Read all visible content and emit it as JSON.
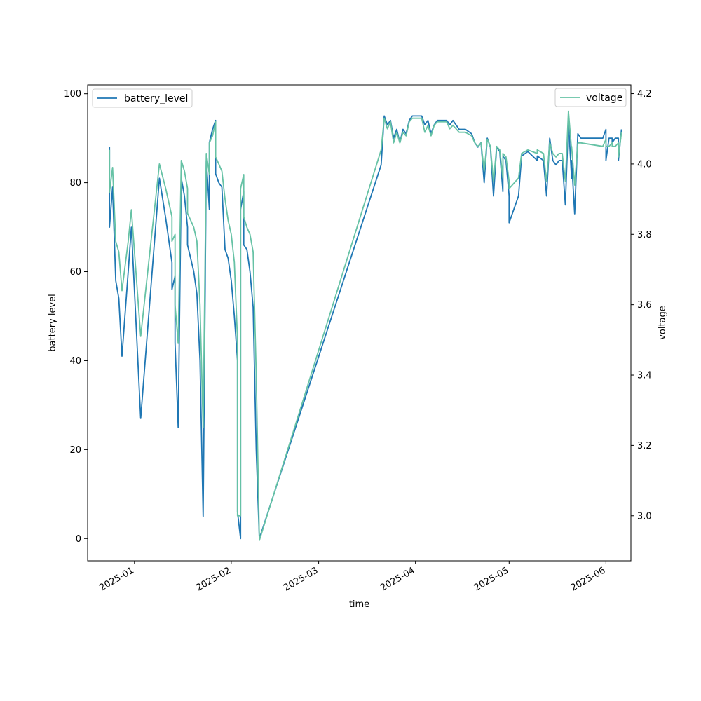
{
  "chart_data": {
    "type": "line",
    "xlabel": "time",
    "ylabel_left": "battery level",
    "ylabel_right": "voltage",
    "x_ticks": [
      "2025-01",
      "2025-02",
      "2025-03",
      "2025-04",
      "2025-05",
      "2025-06"
    ],
    "y_left_ticks": [
      0,
      20,
      40,
      60,
      80,
      100
    ],
    "y_right_ticks": [
      3.0,
      3.2,
      3.4,
      3.6,
      3.8,
      4.0,
      4.2
    ],
    "y_left_lim": [
      -5,
      102
    ],
    "y_right_lim": [
      2.872,
      4.225
    ],
    "x_lim": [
      "2024-12-17",
      "2025-06-09"
    ],
    "grid": false,
    "series": [
      {
        "name": "battery_level",
        "axis": "left",
        "color": "#1f77b4",
        "legend_position": "top-left",
        "points": [
          [
            "2024-12-24",
            88
          ],
          [
            "2024-12-24",
            70
          ],
          [
            "2024-12-25",
            79
          ],
          [
            "2024-12-26",
            58
          ],
          [
            "2024-12-27",
            54
          ],
          [
            "2024-12-28",
            41
          ],
          [
            "2024-12-30",
            60
          ],
          [
            "2024-12-31",
            70
          ],
          [
            "2025-01-03",
            27
          ],
          [
            "2025-01-09",
            81
          ],
          [
            "2025-01-11",
            72
          ],
          [
            "2025-01-13",
            62
          ],
          [
            "2025-01-13",
            56
          ],
          [
            "2025-01-14",
            59
          ],
          [
            "2025-01-14",
            44
          ],
          [
            "2025-01-15",
            25
          ],
          [
            "2025-01-16",
            81
          ],
          [
            "2025-01-17",
            77
          ],
          [
            "2025-01-18",
            70
          ],
          [
            "2025-01-18",
            66
          ],
          [
            "2025-01-19",
            63
          ],
          [
            "2025-01-20",
            60
          ],
          [
            "2025-01-21",
            55
          ],
          [
            "2025-01-22",
            40
          ],
          [
            "2025-01-23",
            5
          ],
          [
            "2025-01-24",
            85
          ],
          [
            "2025-01-25",
            74
          ],
          [
            "2025-01-25",
            89
          ],
          [
            "2025-01-26",
            92
          ],
          [
            "2025-01-27",
            94
          ],
          [
            "2025-01-27",
            82
          ],
          [
            "2025-01-28",
            80
          ],
          [
            "2025-01-29",
            79
          ],
          [
            "2025-01-30",
            65
          ],
          [
            "2025-01-31",
            63
          ],
          [
            "2025-02-01",
            58
          ],
          [
            "2025-02-02",
            50
          ],
          [
            "2025-02-03",
            40
          ],
          [
            "2025-02-03",
            6
          ],
          [
            "2025-02-04",
            0
          ],
          [
            "2025-02-04",
            74
          ],
          [
            "2025-02-05",
            78
          ],
          [
            "2025-02-05",
            66
          ],
          [
            "2025-02-06",
            65
          ],
          [
            "2025-02-07",
            60
          ],
          [
            "2025-02-08",
            52
          ],
          [
            "2025-02-09",
            20
          ],
          [
            "2025-02-10",
            0
          ],
          [
            "2025-03-21",
            84
          ],
          [
            "2025-03-22",
            95
          ],
          [
            "2025-03-23",
            93
          ],
          [
            "2025-03-24",
            94
          ],
          [
            "2025-03-25",
            90
          ],
          [
            "2025-03-26",
            92
          ],
          [
            "2025-03-27",
            89
          ],
          [
            "2025-03-28",
            92
          ],
          [
            "2025-03-29",
            91
          ],
          [
            "2025-03-30",
            94
          ],
          [
            "2025-03-31",
            95
          ],
          [
            "2025-04-03",
            95
          ],
          [
            "2025-04-04",
            93
          ],
          [
            "2025-04-05",
            94
          ],
          [
            "2025-04-06",
            91
          ],
          [
            "2025-04-07",
            93
          ],
          [
            "2025-04-08",
            94
          ],
          [
            "2025-04-11",
            94
          ],
          [
            "2025-04-12",
            93
          ],
          [
            "2025-04-13",
            94
          ],
          [
            "2025-04-15",
            92
          ],
          [
            "2025-04-17",
            92
          ],
          [
            "2025-04-19",
            91
          ],
          [
            "2025-04-20",
            89
          ],
          [
            "2025-04-21",
            88
          ],
          [
            "2025-04-22",
            89
          ],
          [
            "2025-04-23",
            80
          ],
          [
            "2025-04-24",
            90
          ],
          [
            "2025-04-25",
            88
          ],
          [
            "2025-04-26",
            77
          ],
          [
            "2025-04-27",
            88
          ],
          [
            "2025-04-28",
            87
          ],
          [
            "2025-04-29",
            78
          ],
          [
            "2025-04-29",
            86
          ],
          [
            "2025-04-30",
            85
          ],
          [
            "2025-05-01",
            77
          ],
          [
            "2025-05-01",
            71
          ],
          [
            "2025-05-04",
            77
          ],
          [
            "2025-05-05",
            86
          ],
          [
            "2025-05-07",
            87
          ],
          [
            "2025-05-10",
            85
          ],
          [
            "2025-05-10",
            86
          ],
          [
            "2025-05-12",
            85
          ],
          [
            "2025-05-13",
            77
          ],
          [
            "2025-05-14",
            90
          ],
          [
            "2025-05-15",
            85
          ],
          [
            "2025-05-16",
            84
          ],
          [
            "2025-05-17",
            85
          ],
          [
            "2025-05-18",
            85
          ],
          [
            "2025-05-19",
            75
          ],
          [
            "2025-05-20",
            94
          ],
          [
            "2025-05-21",
            81
          ],
          [
            "2025-05-21",
            85
          ],
          [
            "2025-05-22",
            73
          ],
          [
            "2025-05-23",
            91
          ],
          [
            "2025-05-24",
            90
          ],
          [
            "2025-05-31",
            90
          ],
          [
            "2025-06-01",
            92
          ],
          [
            "2025-06-01",
            85
          ],
          [
            "2025-06-02",
            90
          ],
          [
            "2025-06-03",
            90
          ],
          [
            "2025-06-03",
            89
          ],
          [
            "2025-06-04",
            90
          ],
          [
            "2025-06-05",
            90
          ],
          [
            "2025-06-05",
            85
          ],
          [
            "2025-06-06",
            92
          ]
        ]
      },
      {
        "name": "voltage",
        "axis": "right",
        "color": "#66c2a5",
        "legend_position": "top-right",
        "points": [
          [
            "2024-12-24",
            4.04
          ],
          [
            "2024-12-24",
            3.92
          ],
          [
            "2024-12-25",
            3.99
          ],
          [
            "2024-12-26",
            3.78
          ],
          [
            "2024-12-27",
            3.75
          ],
          [
            "2024-12-28",
            3.64
          ],
          [
            "2024-12-30",
            3.78
          ],
          [
            "2024-12-31",
            3.87
          ],
          [
            "2025-01-03",
            3.51
          ],
          [
            "2025-01-09",
            4.0
          ],
          [
            "2025-01-11",
            3.93
          ],
          [
            "2025-01-13",
            3.85
          ],
          [
            "2025-01-13",
            3.78
          ],
          [
            "2025-01-14",
            3.8
          ],
          [
            "2025-01-14",
            3.6
          ],
          [
            "2025-01-15",
            3.49
          ],
          [
            "2025-01-16",
            4.01
          ],
          [
            "2025-01-17",
            3.98
          ],
          [
            "2025-01-18",
            3.93
          ],
          [
            "2025-01-18",
            3.86
          ],
          [
            "2025-01-19",
            3.84
          ],
          [
            "2025-01-20",
            3.82
          ],
          [
            "2025-01-21",
            3.78
          ],
          [
            "2025-01-22",
            3.6
          ],
          [
            "2025-01-23",
            3.25
          ],
          [
            "2025-01-24",
            4.03
          ],
          [
            "2025-01-25",
            3.97
          ],
          [
            "2025-01-25",
            4.06
          ],
          [
            "2025-01-26",
            4.08
          ],
          [
            "2025-01-27",
            4.12
          ],
          [
            "2025-01-27",
            4.02
          ],
          [
            "2025-01-28",
            4.0
          ],
          [
            "2025-01-29",
            3.98
          ],
          [
            "2025-01-30",
            3.9
          ],
          [
            "2025-01-31",
            3.84
          ],
          [
            "2025-02-01",
            3.8
          ],
          [
            "2025-02-02",
            3.72
          ],
          [
            "2025-02-03",
            3.5
          ],
          [
            "2025-02-03",
            3.0
          ],
          [
            "2025-02-04",
            3.0
          ],
          [
            "2025-02-04",
            3.93
          ],
          [
            "2025-02-05",
            3.97
          ],
          [
            "2025-02-05",
            3.85
          ],
          [
            "2025-02-06",
            3.82
          ],
          [
            "2025-02-07",
            3.8
          ],
          [
            "2025-02-08",
            3.75
          ],
          [
            "2025-02-09",
            3.4
          ],
          [
            "2025-02-10",
            2.93
          ],
          [
            "2025-03-21",
            4.04
          ],
          [
            "2025-03-22",
            4.13
          ],
          [
            "2025-03-23",
            4.1
          ],
          [
            "2025-03-24",
            4.12
          ],
          [
            "2025-03-25",
            4.06
          ],
          [
            "2025-03-26",
            4.09
          ],
          [
            "2025-03-27",
            4.06
          ],
          [
            "2025-03-28",
            4.09
          ],
          [
            "2025-03-29",
            4.08
          ],
          [
            "2025-03-30",
            4.12
          ],
          [
            "2025-03-31",
            4.13
          ],
          [
            "2025-04-03",
            4.13
          ],
          [
            "2025-04-04",
            4.09
          ],
          [
            "2025-04-05",
            4.11
          ],
          [
            "2025-04-06",
            4.08
          ],
          [
            "2025-04-07",
            4.11
          ],
          [
            "2025-04-08",
            4.12
          ],
          [
            "2025-04-11",
            4.12
          ],
          [
            "2025-04-12",
            4.1
          ],
          [
            "2025-04-13",
            4.11
          ],
          [
            "2025-04-15",
            4.09
          ],
          [
            "2025-04-17",
            4.09
          ],
          [
            "2025-04-19",
            4.08
          ],
          [
            "2025-04-20",
            4.06
          ],
          [
            "2025-04-21",
            4.05
          ],
          [
            "2025-04-22",
            4.06
          ],
          [
            "2025-04-23",
            3.98
          ],
          [
            "2025-04-24",
            4.07
          ],
          [
            "2025-04-25",
            4.05
          ],
          [
            "2025-04-26",
            3.95
          ],
          [
            "2025-04-27",
            4.05
          ],
          [
            "2025-04-28",
            4.04
          ],
          [
            "2025-04-29",
            3.96
          ],
          [
            "2025-04-29",
            4.03
          ],
          [
            "2025-04-30",
            4.02
          ],
          [
            "2025-05-01",
            3.95
          ],
          [
            "2025-05-01",
            3.93
          ],
          [
            "2025-05-04",
            3.96
          ],
          [
            "2025-05-05",
            4.03
          ],
          [
            "2025-05-07",
            4.04
          ],
          [
            "2025-05-10",
            4.03
          ],
          [
            "2025-05-10",
            4.04
          ],
          [
            "2025-05-12",
            4.03
          ],
          [
            "2025-05-13",
            3.95
          ],
          [
            "2025-05-14",
            4.06
          ],
          [
            "2025-05-15",
            4.03
          ],
          [
            "2025-05-16",
            4.02
          ],
          [
            "2025-05-17",
            4.03
          ],
          [
            "2025-05-18",
            4.03
          ],
          [
            "2025-05-19",
            3.95
          ],
          [
            "2025-05-20",
            4.15
          ],
          [
            "2025-05-21",
            4.04
          ],
          [
            "2025-05-21",
            4.05
          ],
          [
            "2025-05-22",
            3.94
          ],
          [
            "2025-05-23",
            4.06
          ],
          [
            "2025-05-24",
            4.06
          ],
          [
            "2025-05-31",
            4.05
          ],
          [
            "2025-06-01",
            4.07
          ],
          [
            "2025-06-01",
            4.05
          ],
          [
            "2025-06-02",
            4.05
          ],
          [
            "2025-06-03",
            4.06
          ],
          [
            "2025-06-03",
            4.05
          ],
          [
            "2025-06-04",
            4.05
          ],
          [
            "2025-06-05",
            4.06
          ],
          [
            "2025-06-05",
            4.02
          ],
          [
            "2025-06-06",
            4.09
          ]
        ]
      }
    ]
  }
}
